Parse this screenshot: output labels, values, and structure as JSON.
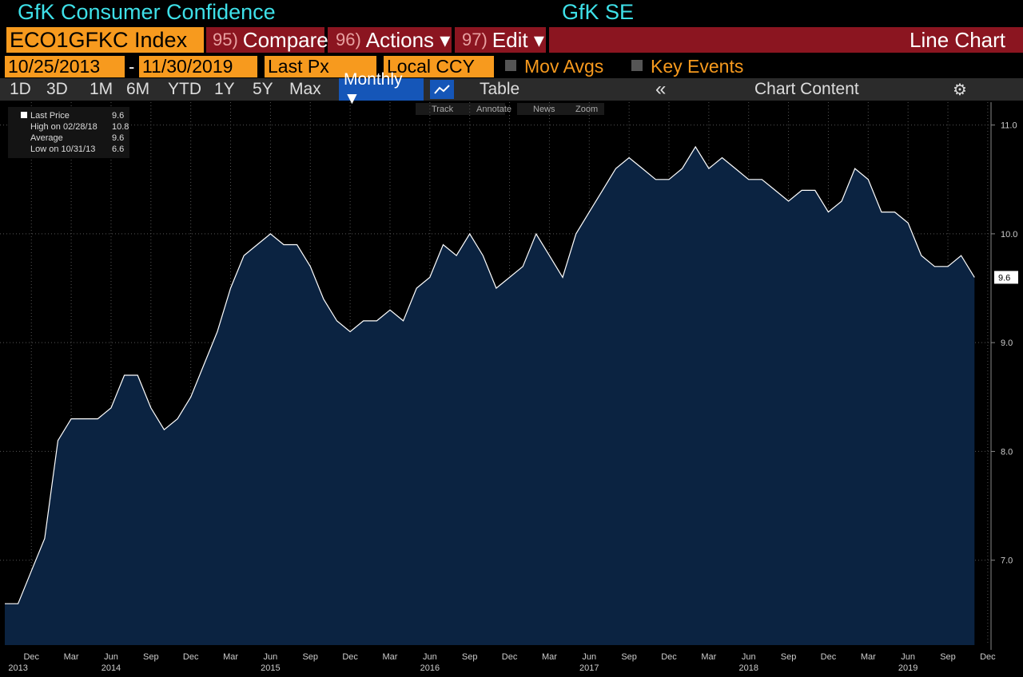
{
  "ui": {
    "title": "GfK Consumer Confidence",
    "source": "GfK SE",
    "ticker": "ECO1GFKC Index",
    "menu": [
      {
        "num": "95)",
        "label": "Compare"
      },
      {
        "num": "96)",
        "label": "Actions ▾"
      },
      {
        "num": "97)",
        "label": "Edit ▾"
      }
    ],
    "view": "Line Chart",
    "start_date": "10/25/2013",
    "date_sep": "-",
    "end_date": "11/30/2019",
    "field": "Last Px",
    "currency": "Local CCY",
    "mov_avgs": "Mov Avgs",
    "key_events": "Key Events",
    "ranges": [
      "1D",
      "3D",
      "1M",
      "6M",
      "YTD",
      "1Y",
      "5Y",
      "Max"
    ],
    "frequency": "Monthly ▼",
    "table": "Table",
    "chart_content": "Chart Content",
    "tools": [
      "Track",
      "Annotate",
      "News",
      "Zoom"
    ]
  },
  "chart_data": {
    "type": "line",
    "categories": [
      null,
      null,
      "Dec",
      null,
      null,
      "Mar",
      null,
      null,
      "Jun",
      null,
      null,
      "Sep",
      null,
      null,
      "Dec",
      null,
      null,
      "Mar",
      null,
      null,
      "Jun",
      null,
      null,
      "Sep",
      null,
      null,
      "Dec",
      null,
      null,
      "Mar",
      null,
      null,
      "Jun",
      null,
      null,
      "Sep",
      null,
      null,
      "Dec",
      null,
      null,
      "Mar",
      null,
      null,
      "Jun",
      null,
      null,
      "Sep",
      null,
      null,
      "Dec",
      null,
      null,
      "Mar",
      null,
      null,
      "Jun",
      null,
      null,
      "Sep",
      null,
      null,
      "Dec",
      null,
      null,
      "Mar",
      null,
      null,
      "Jun",
      null,
      null,
      "Sep",
      null,
      null,
      "Dec"
    ],
    "year_labels": [
      null,
      "2013",
      null,
      null,
      null,
      null,
      null,
      null,
      "2014",
      null,
      null,
      null,
      null,
      null,
      null,
      null,
      null,
      null,
      null,
      null,
      "2015",
      null,
      null,
      null,
      null,
      null,
      null,
      null,
      null,
      null,
      null,
      null,
      "2016",
      null,
      null,
      null,
      null,
      null,
      null,
      null,
      null,
      null,
      null,
      null,
      "2017",
      null,
      null,
      null,
      null,
      null,
      null,
      null,
      null,
      null,
      null,
      null,
      "2018",
      null,
      null,
      null,
      null,
      null,
      null,
      null,
      null,
      null,
      null,
      null,
      "2019",
      null,
      null,
      null,
      null,
      null,
      null
    ],
    "series": [
      {
        "name": "Last Price",
        "color": "#ffffff",
        "fill": "#0b2341",
        "values": [
          6.6,
          6.6,
          6.9,
          7.2,
          8.1,
          8.3,
          8.3,
          8.3,
          8.4,
          8.7,
          8.7,
          8.4,
          8.2,
          8.3,
          8.5,
          8.8,
          9.1,
          9.5,
          9.8,
          9.9,
          10.0,
          9.9,
          9.9,
          9.7,
          9.4,
          9.2,
          9.1,
          9.2,
          9.2,
          9.3,
          9.2,
          9.5,
          9.6,
          9.9,
          9.8,
          10.0,
          9.8,
          9.5,
          9.6,
          9.7,
          10.0,
          9.8,
          9.6,
          10.0,
          10.2,
          10.4,
          10.6,
          10.7,
          10.6,
          10.5,
          10.5,
          10.6,
          10.8,
          10.6,
          10.7,
          10.6,
          10.5,
          10.5,
          10.4,
          10.3,
          10.4,
          10.4,
          10.2,
          10.3,
          10.6,
          10.5,
          10.2,
          10.2,
          10.1,
          9.8,
          9.7,
          9.7,
          9.8,
          9.6,
          null
        ]
      }
    ],
    "last_value": 9.6,
    "stats": [
      {
        "label": "High on 02/28/18",
        "value": 10.8
      },
      {
        "label": "Average",
        "value": 9.6
      },
      {
        "label": "Low on 10/31/13",
        "value": 6.6
      }
    ],
    "ylim": [
      6.22,
      11.21
    ],
    "yticks": [
      {
        "value": 7,
        "label": "7.0"
      },
      {
        "value": 8,
        "label": "8.0"
      },
      {
        "value": 9,
        "label": "9.0"
      },
      {
        "value": 10,
        "label": "10.0"
      },
      {
        "value": 11,
        "label": "11.0"
      }
    ],
    "grid": true
  }
}
